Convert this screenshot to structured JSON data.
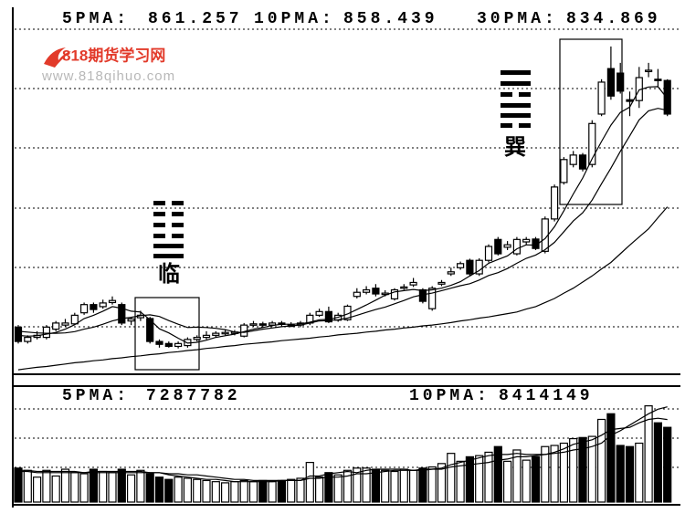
{
  "chart_data": {
    "type": "candlestick",
    "ylim": [
      794,
      882
    ],
    "grid": true,
    "up_color": "#ffffff",
    "down_color": "#000000",
    "open": [
      805.5,
      802,
      803,
      803,
      805,
      806,
      806.3,
      809,
      811,
      810.5,
      811.5,
      811,
      807,
      807.8,
      807.6,
      802,
      801.5,
      800.8,
      801,
      802.5,
      803,
      803.5,
      804,
      804,
      803.3,
      806,
      806.3,
      806,
      806.5,
      806,
      806,
      806.5,
      808.4,
      809.3,
      807.2,
      807.3,
      813,
      814,
      815,
      813.5,
      812.4,
      815,
      815.8,
      814.6,
      810,
      816,
      818.5,
      820,
      821.8,
      818.5,
      821.8,
      826.9,
      825,
      823.4,
      826.3,
      827,
      824,
      831.9,
      840.8,
      845.2,
      847.5,
      845.2,
      857.5,
      868.6,
      867.5,
      861,
      860.8,
      867.9,
      866,
      865.7
    ],
    "high": [
      806,
      803.5,
      804.5,
      806,
      807,
      807.5,
      809,
      811.5,
      811.5,
      812.2,
      813,
      811.5,
      808,
      809.5,
      808,
      802.5,
      802,
      802,
      803,
      803.5,
      804.5,
      804.5,
      805,
      804.8,
      806.5,
      807,
      806.8,
      807,
      807,
      806.7,
      807,
      809,
      810,
      810.5,
      809,
      811,
      815,
      815.5,
      816,
      814.5,
      815,
      816,
      817.5,
      815,
      815.5,
      817,
      820,
      821.5,
      822.2,
      822.3,
      825.7,
      827.5,
      826.5,
      827.5,
      827.5,
      827.5,
      832.5,
      840.3,
      847,
      848.5,
      848,
      856,
      866,
      874,
      870,
      863,
      869,
      870,
      868.5,
      866
    ],
    "low": [
      801.5,
      801.5,
      802.5,
      802.5,
      804.5,
      805.5,
      806,
      808.5,
      809,
      810,
      811,
      806,
      806,
      807,
      801.5,
      800.5,
      800.5,
      800.3,
      800.5,
      802,
      802.5,
      803,
      803.5,
      803.5,
      803,
      805.5,
      805.5,
      805.7,
      805.5,
      805.6,
      805.5,
      806,
      808,
      806.5,
      806.8,
      807,
      812.5,
      813.5,
      813,
      813,
      812,
      814.6,
      815.3,
      811.3,
      809.5,
      815.5,
      818,
      819.5,
      818,
      818,
      821.3,
      823,
      824.3,
      823,
      825.6,
      824.3,
      823.5,
      831.3,
      840.3,
      844.5,
      843.5,
      844.5,
      857,
      861,
      862.5,
      857,
      859,
      866.5,
      864,
      857
    ],
    "close": [
      802,
      803,
      803.5,
      805.5,
      806.5,
      806.5,
      808.4,
      811,
      809.8,
      811.4,
      812,
      806.5,
      807.5,
      808.4,
      802,
      801.3,
      800.8,
      801.5,
      802.5,
      803,
      803.5,
      804,
      804.2,
      804.3,
      806,
      806.3,
      806,
      806.5,
      806.2,
      806,
      806.5,
      808.4,
      809.3,
      806.8,
      808.4,
      810.6,
      814,
      814.6,
      813.6,
      813.8,
      814.6,
      815.3,
      816.4,
      811.8,
      815,
      816.4,
      819,
      821,
      818.5,
      821.8,
      825.2,
      823.4,
      825.6,
      826.9,
      826.9,
      824.7,
      831.9,
      839.7,
      846.4,
      847.5,
      844.1,
      855.2,
      865.3,
      861.9,
      863.1,
      860.6,
      866.4,
      868.2,
      865.8,
      857.5
    ],
    "series": [
      {
        "name": "5PMA:",
        "color": "#000000",
        "values": [
          803.5,
          803.3,
          803.4,
          803.8,
          804.2,
          805,
          806.1,
          807.6,
          808.4,
          809.4,
          810.5,
          810.1,
          809.4,
          809.2,
          807.3,
          805.1,
          804.1,
          802.8,
          801.6,
          801.8,
          802.3,
          803,
          803.4,
          803.8,
          804.4,
          805,
          805.4,
          805.9,
          806.2,
          806.2,
          806.3,
          806.7,
          807.3,
          807.4,
          807.9,
          808.7,
          809.8,
          810.9,
          812.1,
          813.3,
          814.1,
          814.4,
          814.7,
          814.4,
          814.6,
          815,
          815.7,
          816.6,
          818,
          819.3,
          821.1,
          822,
          822.9,
          824.6,
          825.6,
          825.5,
          827.1,
          830,
          833.9,
          838,
          841.9,
          846.6,
          850.8,
          854.8,
          857.9,
          859.2,
          863.4,
          864.1,
          864.2,
          861.257
        ]
      },
      {
        "name": "10PMA:",
        "color": "#000000",
        "values": [
          804.5,
          804.3,
          804.1,
          804,
          804,
          804.1,
          804.4,
          805,
          805.5,
          806.2,
          807,
          807.6,
          807.9,
          808.3,
          808.5,
          808.1,
          807.1,
          806.2,
          805.4,
          805.5,
          805.4,
          805.2,
          804.9,
          804.3,
          804.2,
          804.6,
          805,
          805.3,
          805.6,
          805.8,
          806,
          806.5,
          807,
          807.1,
          807.3,
          807.7,
          808.4,
          809.1,
          809.8,
          810.4,
          811.2,
          812,
          812.9,
          813.4,
          813.8,
          814.4,
          815,
          815.6,
          816.1,
          817,
          818.1,
          818.8,
          819.8,
          821.1,
          822.3,
          823.1,
          824.4,
          826.2,
          828.8,
          831.4,
          833.4,
          836.5,
          840.5,
          844.3,
          848.4,
          852.2,
          856.1,
          858.3,
          858.9,
          858.439
        ]
      },
      {
        "name": "30PMA:",
        "color": "#000000",
        "values": [
          795.1,
          795.4,
          795.7,
          795.9,
          796.2,
          796.5,
          796.8,
          797,
          797.3,
          797.5,
          797.8,
          798,
          798.3,
          798.5,
          798.8,
          799,
          799.3,
          799.5,
          799.8,
          800,
          800.3,
          800.5,
          800.8,
          801,
          801.3,
          801.5,
          801.7,
          801.9,
          802.2,
          802.4,
          802.6,
          802.8,
          803.1,
          803.3,
          803.6,
          803.8,
          804,
          804.3,
          804.5,
          804.8,
          805,
          805.3,
          805.5,
          805.8,
          806,
          806.3,
          806.6,
          807,
          807.3,
          807.7,
          808,
          808.4,
          808.8,
          809.2,
          809.9,
          810.5,
          811.5,
          812.5,
          813.8,
          815,
          816.5,
          818,
          819.7,
          821.3,
          823.4,
          825.5,
          827.5,
          829.5,
          832.2,
          834.869
        ]
      }
    ],
    "volume": {
      "ylim": [
        0,
        10000000
      ],
      "values": [
        3000000,
        2800000,
        2200000,
        2800000,
        2300000,
        2900000,
        2600000,
        2500000,
        2900000,
        2700000,
        2600000,
        2900000,
        2400000,
        2800000,
        2500000,
        2200000,
        2000000,
        2200000,
        2100000,
        2000000,
        1900000,
        1800000,
        1700000,
        1800000,
        1900000,
        1800000,
        1900000,
        1800000,
        1900000,
        2000000,
        2100000,
        3500000,
        2200000,
        2600000,
        2400000,
        2800000,
        3000000,
        3000000,
        2900000,
        2800000,
        2700000,
        2900000,
        2800000,
        3000000,
        3100000,
        3400000,
        4300000,
        3600000,
        4000000,
        4100000,
        4400000,
        4900000,
        3600000,
        4600000,
        3700000,
        4000000,
        4900000,
        5000000,
        5200000,
        5600000,
        5700000,
        5800000,
        7300000,
        7800000,
        5000000,
        4900000,
        5200000,
        8500000,
        7000000,
        6600000
      ],
      "series": [
        {
          "name": "5PMA:",
          "color": "#000000",
          "values": [
            2700000,
            2700000,
            2600000,
            2600000,
            2600000,
            2600000,
            2600000,
            2600000,
            2700000,
            2700000,
            2700000,
            2700000,
            2700000,
            2700000,
            2600000,
            2600000,
            2400000,
            2300000,
            2200000,
            2100000,
            2000000,
            2000000,
            1900000,
            1800000,
            1800000,
            1800000,
            1800000,
            1800000,
            1900000,
            1900000,
            1900000,
            2300000,
            2300000,
            2500000,
            2600000,
            2700000,
            2600000,
            2800000,
            2900000,
            2900000,
            2900000,
            2900000,
            2800000,
            2800000,
            2900000,
            3000000,
            3300000,
            3500000,
            3700000,
            3900000,
            4100000,
            4200000,
            4200000,
            4300000,
            4200000,
            4200000,
            4200000,
            4400000,
            4700000,
            5100000,
            5300000,
            5500000,
            5900000,
            6400000,
            6500000,
            6600000,
            7000000,
            7300000,
            7400000,
            7287782
          ]
        },
        {
          "name": "10PMA:",
          "color": "#000000",
          "values": [
            2800000,
            2800000,
            2700000,
            2700000,
            2700000,
            2700000,
            2700000,
            2600000,
            2600000,
            2600000,
            2600000,
            2600000,
            2600000,
            2600000,
            2600000,
            2600000,
            2500000,
            2500000,
            2400000,
            2400000,
            2300000,
            2200000,
            2100000,
            2000000,
            2000000,
            1900000,
            1900000,
            1900000,
            1900000,
            1900000,
            1900000,
            2100000,
            2100000,
            2200000,
            2200000,
            2300000,
            2500000,
            2500000,
            2600000,
            2700000,
            2800000,
            2800000,
            2800000,
            2900000,
            2900000,
            2900000,
            3100000,
            3200000,
            3300000,
            3400000,
            3500000,
            3700000,
            3800000,
            4000000,
            4000000,
            4100000,
            4200000,
            4300000,
            4400000,
            4600000,
            4700000,
            4900000,
            5200000,
            5900000,
            6300000,
            6800000,
            7300000,
            7800000,
            8200000,
            8414149
          ]
        }
      ]
    },
    "annotations": [
      "临",
      "巽"
    ]
  },
  "watermark": {
    "name": "818期货学习网",
    "url": "www.818qihuo.com"
  }
}
